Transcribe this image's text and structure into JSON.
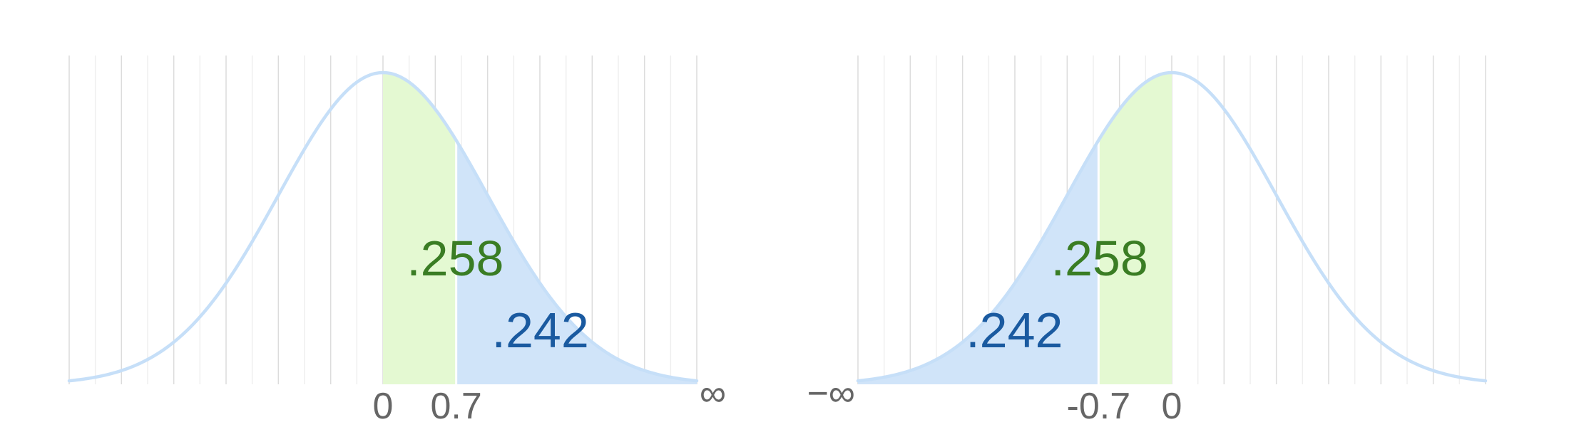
{
  "chart_data": [
    {
      "type": "area",
      "distribution": "standard normal",
      "xlim": [
        -3,
        3
      ],
      "curve_color": "#c6dff8",
      "grid": true,
      "regions": [
        {
          "from": 0,
          "to": 0.7,
          "label": ".258",
          "fill": "#e4f9d2",
          "label_color": "#3a7d24"
        },
        {
          "from": 0.7,
          "to": "∞",
          "label": ".242",
          "fill": "#d0e4f9",
          "label_color": "#1a5aa0"
        }
      ],
      "tick_labels": [
        {
          "value": 0,
          "label": "0"
        },
        {
          "value": 0.7,
          "label": "0.7"
        },
        {
          "value": 3,
          "label": "∞"
        }
      ]
    },
    {
      "type": "area",
      "distribution": "standard normal",
      "xlim": [
        -3,
        3
      ],
      "curve_color": "#c6dff8",
      "grid": true,
      "regions": [
        {
          "from": "−∞",
          "to": -0.7,
          "label": ".242",
          "fill": "#d0e4f9",
          "label_color": "#1a5aa0"
        },
        {
          "from": -0.7,
          "to": 0,
          "label": ".258",
          "fill": "#e4f9d2",
          "label_color": "#3a7d24"
        }
      ],
      "tick_labels": [
        {
          "value": -3,
          "label": "−∞"
        },
        {
          "value": -0.7,
          "label": "-0.7"
        },
        {
          "value": 0,
          "label": "0"
        }
      ]
    }
  ]
}
